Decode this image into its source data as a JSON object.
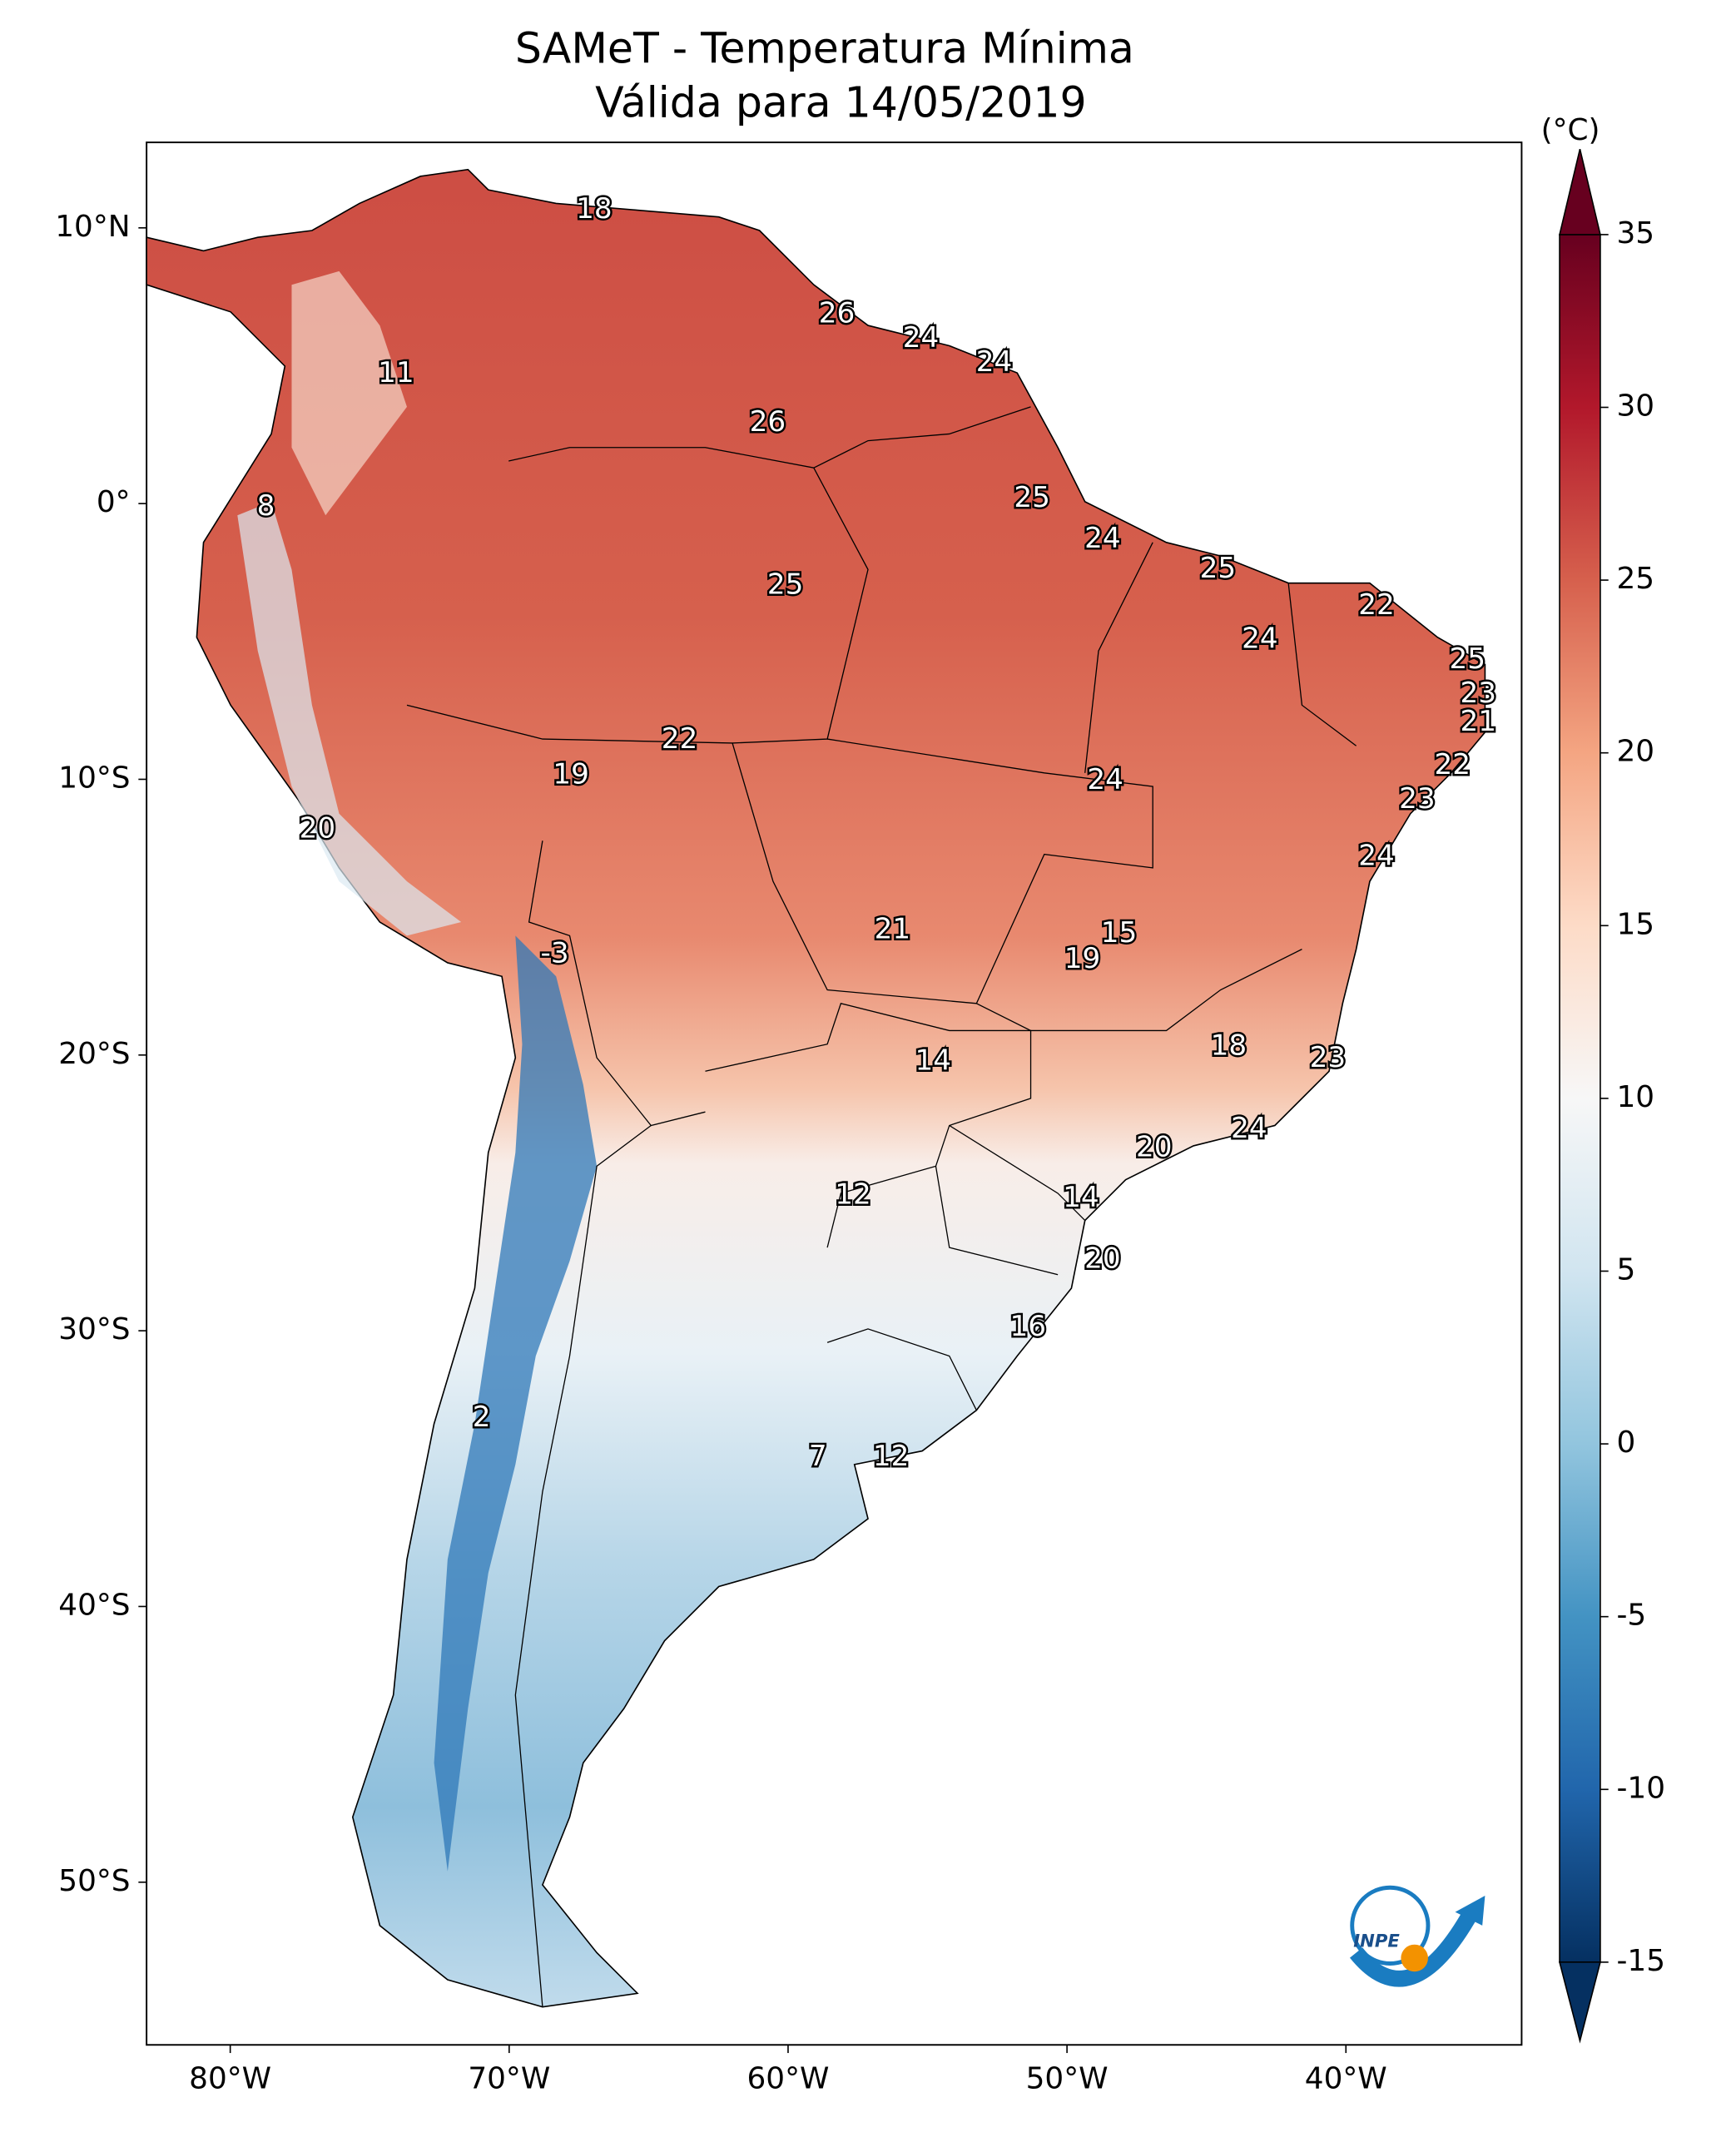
{
  "chart_data": {
    "type": "map",
    "title": "SAMeT - Temperatura Mínima",
    "subtitle": "Válida para 14/05/2019",
    "colorbar_label": "(°C)",
    "logo": "INPE",
    "xlim": [
      -83,
      -33.7
    ],
    "ylim": [
      -55.9,
      13.1
    ],
    "xticks": [
      {
        "value": -80,
        "label": "80°W"
      },
      {
        "value": -70,
        "label": "70°W"
      },
      {
        "value": -60,
        "label": "60°W"
      },
      {
        "value": -50,
        "label": "50°W"
      },
      {
        "value": -40,
        "label": "40°W"
      }
    ],
    "yticks": [
      {
        "value": 10,
        "label": "10°N"
      },
      {
        "value": 0,
        "label": "0°"
      },
      {
        "value": -10,
        "label": "10°S"
      },
      {
        "value": -20,
        "label": "20°S"
      },
      {
        "value": -30,
        "label": "30°S"
      },
      {
        "value": -40,
        "label": "40°S"
      },
      {
        "value": -50,
        "label": "50°S"
      }
    ],
    "clim": [
      -15,
      35
    ],
    "cticks": [
      35,
      30,
      25,
      20,
      15,
      10,
      5,
      0,
      -5,
      -10,
      -15
    ],
    "colormap": [
      "#053061",
      "#2166ac",
      "#4393c3",
      "#92c5de",
      "#d1e5f0",
      "#f7f7f7",
      "#fddbc7",
      "#f4a582",
      "#d6604d",
      "#b2182b",
      "#67001f"
    ],
    "labels": [
      18,
      11,
      26,
      24,
      24,
      26,
      8,
      25,
      24,
      25,
      25,
      22,
      24,
      25,
      23,
      21,
      22,
      22,
      19,
      24,
      23,
      20,
      24,
      21,
      15,
      -3,
      19,
      18,
      14,
      23,
      24,
      20,
      12,
      14,
      20,
      16,
      2,
      7,
      12
    ]
  }
}
